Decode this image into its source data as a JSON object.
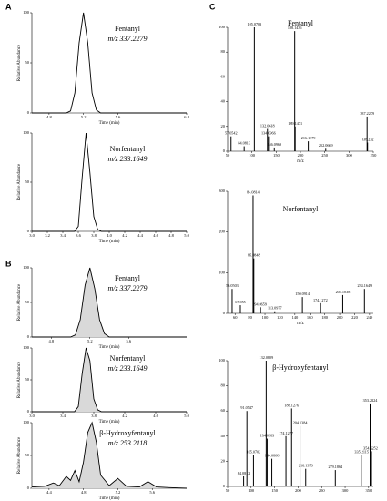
{
  "panel_labels": [
    "A",
    "B",
    "C"
  ],
  "chart_data": [
    {
      "type": "line",
      "title": "Fentanyl",
      "subtitle": "m/z 337.2279",
      "xlabel": "Time (min)",
      "ylabel": "Relative Abundance",
      "x": [
        4.6,
        4.9,
        5.0,
        5.05,
        5.1,
        5.15,
        5.2,
        5.25,
        5.3,
        5.35,
        5.4,
        5.6,
        6.0,
        6.4
      ],
      "values": [
        0,
        0,
        0,
        2,
        20,
        70,
        100,
        70,
        20,
        3,
        0,
        0,
        0,
        0
      ],
      "xlim": [
        4.6,
        6.4
      ],
      "xticks": [
        4.8,
        5.2,
        5.6,
        6.4
      ],
      "ylim": [
        0,
        100
      ],
      "yticks": [
        0,
        50,
        100
      ],
      "color": "#000000",
      "fill": false
    },
    {
      "type": "line",
      "title": "Norfentanyl",
      "subtitle": "m/z 233.1649",
      "xlabel": "Time (min)",
      "ylabel": "Relative Abundance",
      "x": [
        3.0,
        3.55,
        3.6,
        3.65,
        3.7,
        3.75,
        3.8,
        3.85,
        3.9,
        5.0
      ],
      "values": [
        0,
        0,
        5,
        55,
        100,
        60,
        15,
        2,
        0,
        0
      ],
      "xlim": [
        3,
        5
      ],
      "xticks": [
        {
          "value": 3,
          "label": "3.0"
        },
        3.2,
        3.4,
        3.6,
        3.8,
        {
          "value": 4,
          "label": "4.0"
        },
        4.2,
        4.4,
        4.6,
        4.8,
        {
          "value": 5,
          "label": "5.0"
        }
      ],
      "ylim": [
        0,
        100
      ],
      "yticks": [
        0,
        50,
        100
      ],
      "color": "#000000",
      "fill": false
    },
    {
      "type": "line",
      "title": "Fentanyl",
      "subtitle": "m/z 337.2279",
      "xlabel": "Time (min)",
      "ylabel": "Relative Abundance",
      "x": [
        4.6,
        5.0,
        5.05,
        5.1,
        5.15,
        5.2,
        5.25,
        5.3,
        5.35,
        5.4,
        5.6,
        6.2
      ],
      "values": [
        0,
        0,
        3,
        25,
        75,
        100,
        70,
        25,
        5,
        0,
        0,
        0
      ],
      "xlim": [
        4.6,
        6.2
      ],
      "xticks": [
        4.8,
        5.2,
        5.6
      ],
      "ylim": [
        0,
        100
      ],
      "yticks": [
        0,
        50,
        100
      ],
      "color": "#000000",
      "fill": true
    },
    {
      "type": "line",
      "title": "Norfentanyl",
      "subtitle": "m/z 233.1649",
      "xlabel": "Time (min)",
      "ylabel": "Relative Abundance",
      "x": [
        3.0,
        3.55,
        3.6,
        3.65,
        3.7,
        3.75,
        3.8,
        3.85,
        3.9,
        5.0
      ],
      "values": [
        0,
        0,
        8,
        60,
        100,
        80,
        20,
        3,
        0,
        0
      ],
      "xlim": [
        3,
        5
      ],
      "xticks": [
        {
          "value": 3,
          "label": "3.0"
        },
        3.4,
        3.8,
        4.2,
        4.6,
        {
          "value": 5,
          "label": "5.0"
        }
      ],
      "ylim": [
        0,
        100
      ],
      "yticks": [
        0,
        50,
        100
      ],
      "color": "#000000",
      "fill": true
    },
    {
      "type": "line",
      "title": "β-Hydroxyfentanyl",
      "subtitle": "m/z 253.2118",
      "xlabel": "Time (min)",
      "ylabel": "Relative Abundance",
      "x": [
        4.2,
        4.35,
        4.45,
        4.52,
        4.6,
        4.65,
        4.7,
        4.75,
        4.8,
        4.85,
        4.9,
        4.95,
        5.0,
        5.1,
        5.2,
        5.3,
        5.45,
        5.55,
        5.65,
        5.8,
        6.0
      ],
      "values": [
        2,
        3,
        8,
        4,
        18,
        12,
        27,
        10,
        40,
        85,
        100,
        70,
        20,
        4,
        15,
        3,
        2,
        10,
        2,
        1,
        0
      ],
      "xlim": [
        4.2,
        6
      ],
      "xticks": [
        4.4,
        4.8,
        5.2,
        5.6
      ],
      "ylim": [
        0,
        100
      ],
      "yticks": [
        0,
        50,
        100
      ],
      "color": "#000000",
      "fill": true
    },
    {
      "type": "bar",
      "title": "Fentanyl",
      "xlabel": "m/z",
      "x": [
        57.0542,
        84.0813,
        105.0703,
        132.0618,
        134.0966,
        146.0969,
        188.1436,
        189.1471,
        216.1379,
        252.0669,
        337.2279,
        338.232
      ],
      "values": [
        12,
        4,
        100,
        18,
        12,
        3,
        97,
        20,
        8,
        2,
        28,
        7
      ],
      "xlim": [
        50,
        350
      ],
      "xticks": [
        50,
        100,
        150,
        200,
        250,
        300,
        350
      ],
      "ylim": [
        0,
        100
      ],
      "yticks": [
        0,
        20,
        40,
        60,
        80,
        100
      ],
      "color": "#000000"
    },
    {
      "type": "bar",
      "title": "Norfentanyl",
      "xlabel": "m/z",
      "x": [
        56.0503,
        67.055,
        84.0814,
        85.0848,
        94.0659,
        113.0977,
        150.0914,
        174.1272,
        204.1038,
        233.1649
      ],
      "values": [
        60,
        20,
        290,
        135,
        15,
        5,
        40,
        25,
        45,
        60
      ],
      "xlim": [
        50,
        245
      ],
      "xticks": [
        60,
        80,
        100,
        120,
        140,
        160,
        180,
        200,
        220,
        240
      ],
      "ylim": [
        0,
        300
      ],
      "yticks": [
        0,
        100,
        200,
        300
      ],
      "color": "#000000"
    },
    {
      "type": "bar",
      "title": "β-Hydroxyfentanyl",
      "x": [
        84.0812,
        91.0547,
        105.0702,
        132.0809,
        134.0963,
        144.0808,
        174.1277,
        186.1276,
        204.1384,
        216.1376,
        279.1864,
        335.2115,
        353.2224,
        354.2252
      ],
      "values": [
        8,
        60,
        25,
        100,
        38,
        22,
        40,
        62,
        48,
        14,
        13,
        25,
        66,
        28
      ],
      "xlim": [
        50,
        360
      ],
      "xticks": [
        50,
        100,
        150,
        200,
        250,
        300,
        350
      ],
      "ylim": [
        0,
        100
      ],
      "yticks": [
        0,
        20,
        40,
        60,
        80,
        100
      ],
      "color": "#000000"
    }
  ]
}
